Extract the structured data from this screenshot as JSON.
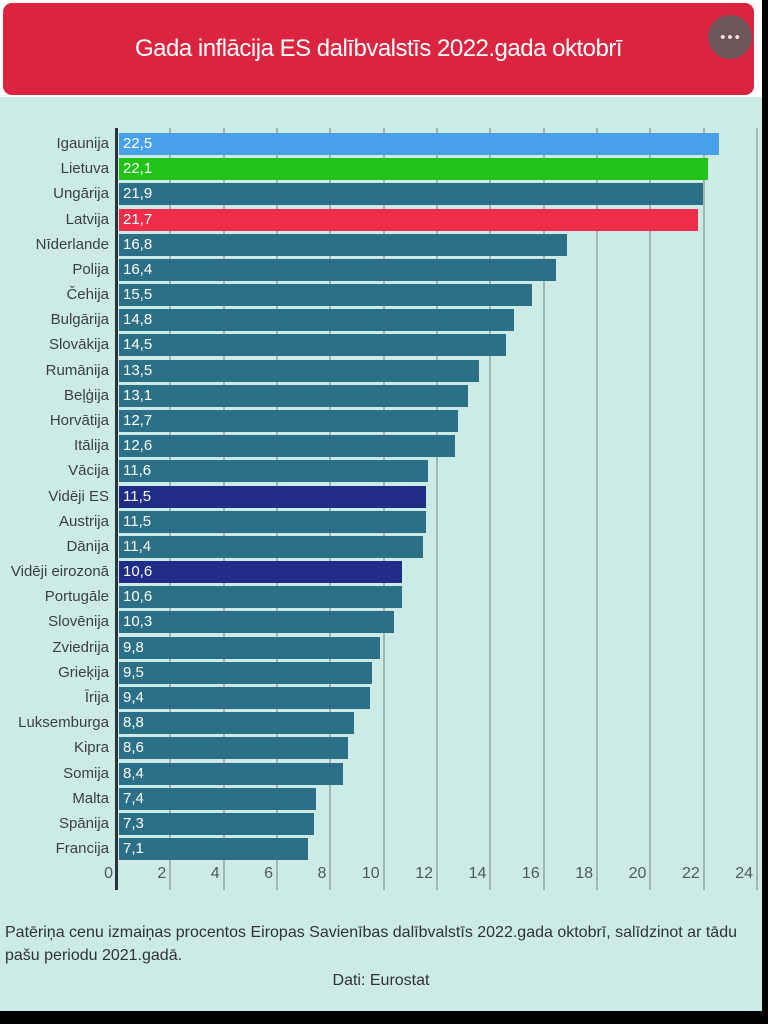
{
  "header": {
    "menu_icon": "•••"
  },
  "chart_data": {
    "type": "bar",
    "orientation": "horizontal",
    "title": "Gada inflācija ES dalībvalstīs 2022.gada oktobrī",
    "xlim": [
      0,
      24
    ],
    "x_ticks": [
      0,
      2,
      4,
      6,
      8,
      10,
      12,
      14,
      16,
      18,
      20,
      22,
      24
    ],
    "grid": true,
    "unit": "percent",
    "rows": [
      {
        "label": "Igaunija",
        "value": 22.5,
        "display": "22,5",
        "color": "blue"
      },
      {
        "label": "Lietuva",
        "value": 22.1,
        "display": "22,1",
        "color": "green"
      },
      {
        "label": "Ungārija",
        "value": 21.9,
        "display": "21,9",
        "color": "teal"
      },
      {
        "label": "Latvija",
        "value": 21.7,
        "display": "21,7",
        "color": "red"
      },
      {
        "label": "Nīderlande",
        "value": 16.8,
        "display": "16,8",
        "color": "teal"
      },
      {
        "label": "Polija",
        "value": 16.4,
        "display": "16,4",
        "color": "teal"
      },
      {
        "label": "Čehija",
        "value": 15.5,
        "display": "15,5",
        "color": "teal"
      },
      {
        "label": "Bulgārija",
        "value": 14.8,
        "display": "14,8",
        "color": "teal"
      },
      {
        "label": "Slovākija",
        "value": 14.5,
        "display": "14,5",
        "color": "teal"
      },
      {
        "label": "Rumānija",
        "value": 13.5,
        "display": "13,5",
        "color": "teal"
      },
      {
        "label": "Beļģija",
        "value": 13.1,
        "display": "13,1",
        "color": "teal"
      },
      {
        "label": "Horvātija",
        "value": 12.7,
        "display": "12,7",
        "color": "teal"
      },
      {
        "label": "Itālija",
        "value": 12.6,
        "display": "12,6",
        "color": "teal"
      },
      {
        "label": "Vācija",
        "value": 11.6,
        "display": "11,6",
        "color": "teal"
      },
      {
        "label": "Vidēji ES",
        "value": 11.5,
        "display": "11,5",
        "color": "navy"
      },
      {
        "label": "Austrija",
        "value": 11.5,
        "display": "11,5",
        "color": "teal"
      },
      {
        "label": "Dānija",
        "value": 11.4,
        "display": "11,4",
        "color": "teal"
      },
      {
        "label": "Vidēji eirozonā",
        "value": 10.6,
        "display": "10,6",
        "color": "navy"
      },
      {
        "label": "Portugāle",
        "value": 10.6,
        "display": "10,6",
        "color": "teal"
      },
      {
        "label": "Slovēnija",
        "value": 10.3,
        "display": "10,3",
        "color": "teal"
      },
      {
        "label": "Zviedrija",
        "value": 9.8,
        "display": "9,8",
        "color": "teal"
      },
      {
        "label": "Grieķija",
        "value": 9.5,
        "display": "9,5",
        "color": "teal"
      },
      {
        "label": "Īrija",
        "value": 9.4,
        "display": "9,4",
        "color": "teal"
      },
      {
        "label": "Luksemburga",
        "value": 8.8,
        "display": "8,8",
        "color": "teal"
      },
      {
        "label": "Kipra",
        "value": 8.6,
        "display": "8,6",
        "color": "teal"
      },
      {
        "label": "Somija",
        "value": 8.4,
        "display": "8,4",
        "color": "teal"
      },
      {
        "label": "Malta",
        "value": 7.4,
        "display": "7,4",
        "color": "teal"
      },
      {
        "label": "Spānija",
        "value": 7.3,
        "display": "7,3",
        "color": "teal"
      },
      {
        "label": "Francija",
        "value": 7.1,
        "display": "7,1",
        "color": "teal"
      }
    ],
    "palette": {
      "blue": "#47a0e8",
      "green": "#20c316",
      "teal": "#2b7086",
      "red": "#ee2d4b",
      "navy": "#1f2d89"
    },
    "style_colors": {
      "header_red": "#da2440",
      "background_mint": "#cceae6",
      "gridline": "#9db7b3",
      "axis_line": "#2b3338"
    }
  },
  "footer": {
    "description": "Patēriņa cenu izmaiņas procentos Eiropas Savienības dalībvalstīs 2022.gada oktobrī, salīdzinot ar tādu pašu periodu 2021.gadā.",
    "source": "Dati: Eurostat"
  }
}
